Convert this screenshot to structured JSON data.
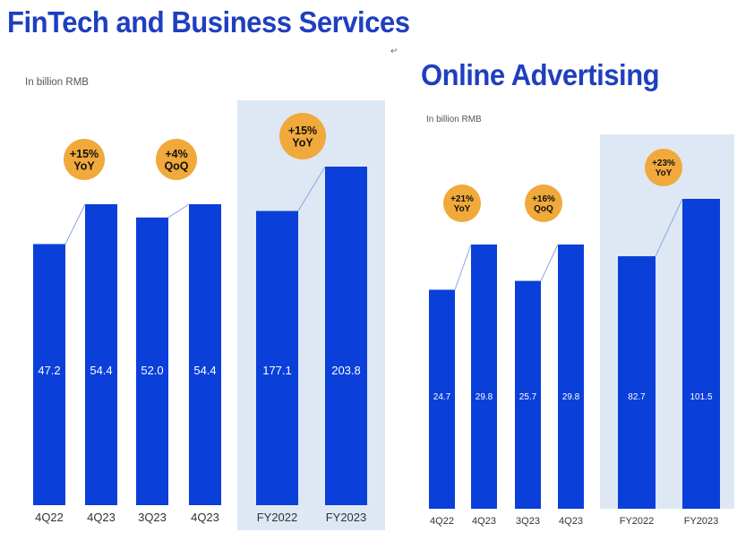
{
  "left_panel": {
    "title": "FinTech and Business Services",
    "unit": "In billion RMB"
  },
  "right_panel": {
    "title": "Online Advertising",
    "unit": "In billion RMB"
  },
  "return_mark": "↵",
  "colors": {
    "bar": "#0a3fd9",
    "badge": "#f0a93a",
    "highlight": "#dde8f4",
    "title": "#1f3fbf"
  },
  "chart_data": [
    {
      "type": "bar",
      "title": "FinTech and Business Services",
      "ylabel": "In billion RMB",
      "groups": [
        {
          "categories": [
            "4Q22",
            "4Q23"
          ],
          "values": [
            47.2,
            54.4
          ],
          "change": {
            "value": "+15%",
            "label": "YoY"
          }
        },
        {
          "categories": [
            "3Q23",
            "4Q23"
          ],
          "values": [
            52.0,
            54.4
          ],
          "change": {
            "value": "+4%",
            "label": "QoQ"
          }
        },
        {
          "categories": [
            "FY2022",
            "FY2023"
          ],
          "values": [
            177.1,
            203.8
          ],
          "change": {
            "value": "+15%",
            "label": "YoY"
          },
          "highlighted": true
        }
      ]
    },
    {
      "type": "bar",
      "title": "Online Advertising",
      "ylabel": "In billion RMB",
      "groups": [
        {
          "categories": [
            "4Q22",
            "4Q23"
          ],
          "values": [
            24.7,
            29.8
          ],
          "change": {
            "value": "+21%",
            "label": "YoY"
          }
        },
        {
          "categories": [
            "3Q23",
            "4Q23"
          ],
          "values": [
            25.7,
            29.8
          ],
          "change": {
            "value": "+16%",
            "label": "QoQ"
          }
        },
        {
          "categories": [
            "FY2022",
            "FY2023"
          ],
          "values": [
            82.7,
            101.5
          ],
          "change": {
            "value": "+23%",
            "label": "YoY"
          },
          "highlighted": true
        }
      ]
    }
  ]
}
